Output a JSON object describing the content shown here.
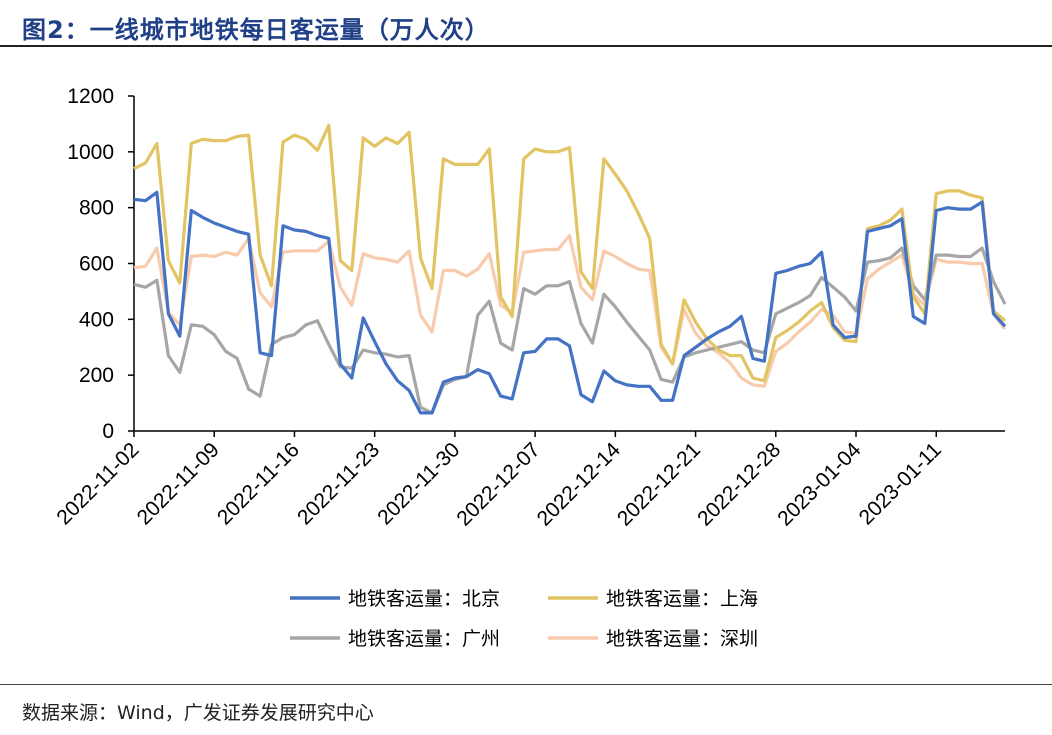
{
  "figure": {
    "title": "图2：一线城市地铁每日客运量（万人次）",
    "source": "数据来源：Wind，广发证券发展研究中心"
  },
  "chart_data": {
    "type": "line",
    "title": "一线城市地铁每日客运量（万人次）",
    "xlabel": "",
    "ylabel": "",
    "ylim": [
      0,
      1200
    ],
    "yticks": [
      0,
      200,
      400,
      600,
      800,
      1000,
      1200
    ],
    "start_date": "2022-11-02",
    "x_tick_labels": [
      "2022-11-02",
      "2022-11-09",
      "2022-11-16",
      "2022-11-23",
      "2022-11-30",
      "2022-12-07",
      "2022-12-14",
      "2022-12-21",
      "2022-12-28",
      "2023-01-04",
      "2023-01-11"
    ],
    "legend_position": "bottom",
    "grid": false,
    "series": [
      {
        "name": "地铁客运量：北京",
        "color": "#4472c4",
        "values": [
          830,
          825,
          855,
          420,
          340,
          790,
          765,
          745,
          730,
          715,
          705,
          280,
          270,
          735,
          720,
          715,
          700,
          690,
          240,
          190,
          405,
          320,
          240,
          180,
          145,
          65,
          65,
          175,
          190,
          195,
          220,
          205,
          125,
          115,
          280,
          285,
          330,
          330,
          305,
          130,
          105,
          215,
          180,
          165,
          160,
          160,
          110,
          110,
          270,
          300,
          330,
          355,
          375,
          410,
          260,
          250,
          565,
          575,
          590,
          600,
          640,
          380,
          335,
          340,
          715,
          725,
          735,
          760,
          410,
          385,
          790,
          800,
          795,
          795,
          820,
          420,
          375
        ]
      },
      {
        "name": "地铁客运量：上海",
        "color": "#e2c463",
        "values": [
          940,
          960,
          1030,
          610,
          530,
          1030,
          1045,
          1040,
          1040,
          1055,
          1060,
          630,
          520,
          1035,
          1060,
          1045,
          1005,
          1095,
          610,
          575,
          1050,
          1020,
          1050,
          1030,
          1070,
          620,
          510,
          975,
          955,
          955,
          955,
          1010,
          480,
          410,
          975,
          1010,
          1000,
          1000,
          1015,
          570,
          510,
          975,
          920,
          860,
          780,
          690,
          310,
          240,
          470,
          390,
          330,
          290,
          270,
          270,
          190,
          180,
          335,
          360,
          390,
          430,
          460,
          370,
          325,
          320,
          725,
          735,
          755,
          795,
          480,
          420,
          850,
          860,
          860,
          845,
          835,
          430,
          395
        ]
      },
      {
        "name": "地铁客运量：广州",
        "color": "#a6a6a6",
        "values": [
          525,
          515,
          540,
          270,
          210,
          380,
          375,
          345,
          285,
          260,
          150,
          125,
          310,
          335,
          345,
          380,
          395,
          310,
          230,
          225,
          290,
          280,
          275,
          265,
          270,
          85,
          65,
          165,
          185,
          195,
          415,
          465,
          315,
          290,
          510,
          490,
          520,
          520,
          535,
          385,
          315,
          490,
          445,
          390,
          340,
          290,
          185,
          175,
          265,
          280,
          290,
          300,
          310,
          320,
          290,
          280,
          420,
          440,
          460,
          485,
          550,
          515,
          480,
          430,
          605,
          610,
          620,
          655,
          520,
          470,
          630,
          630,
          625,
          625,
          655,
          535,
          455
        ]
      },
      {
        "name": "地铁客运量：深圳",
        "color": "#f8cbad",
        "values": [
          585,
          590,
          655,
          425,
          380,
          625,
          630,
          625,
          640,
          630,
          690,
          495,
          445,
          640,
          645,
          645,
          645,
          680,
          515,
          450,
          635,
          620,
          615,
          605,
          645,
          415,
          355,
          575,
          575,
          555,
          580,
          635,
          450,
          425,
          640,
          645,
          650,
          650,
          700,
          515,
          470,
          645,
          625,
          600,
          580,
          575,
          300,
          240,
          435,
          350,
          305,
          280,
          245,
          190,
          165,
          160,
          285,
          315,
          355,
          390,
          435,
          415,
          355,
          350,
          545,
          580,
          605,
          630,
          490,
          450,
          615,
          605,
          605,
          600,
          600,
          420,
          365
        ]
      }
    ]
  }
}
